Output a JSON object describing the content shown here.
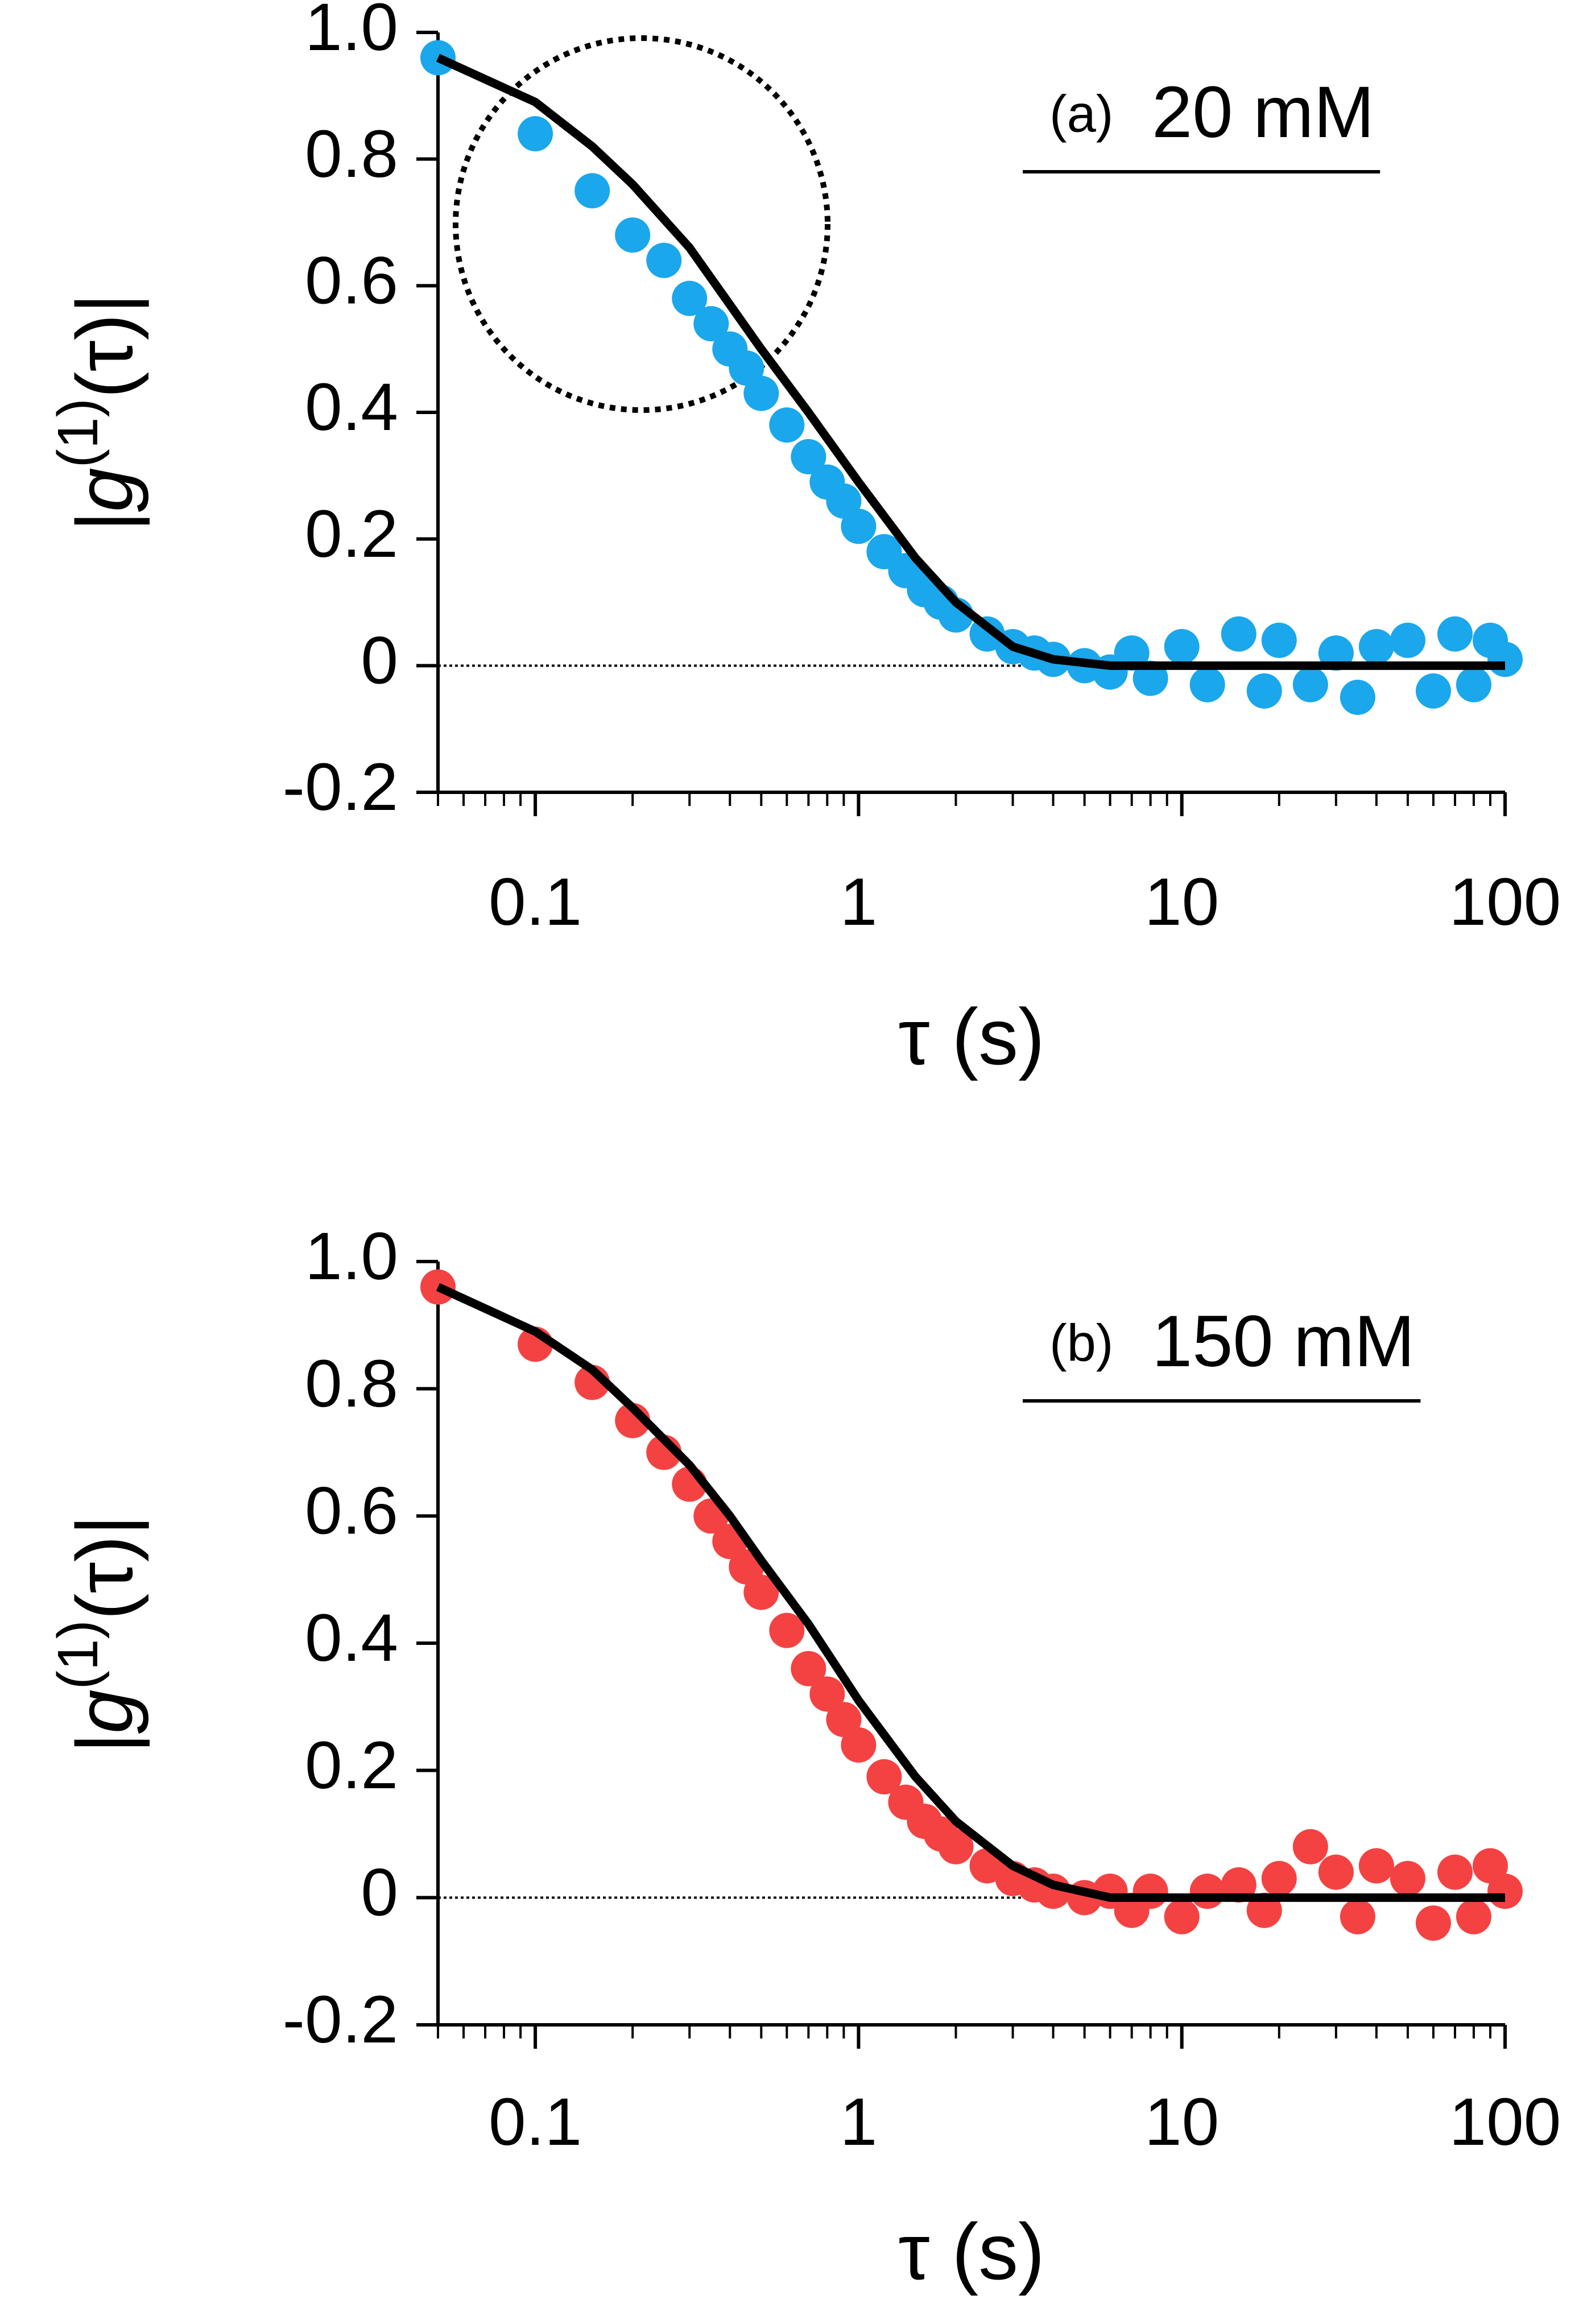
{
  "chart_data": [
    {
      "type": "scatter",
      "panel_label": "(a)",
      "annotation": "20 mM",
      "ylabel": {
        "prefix": "|g",
        "sup": "(1)",
        "suffix": "(τ)|"
      },
      "xlabel": "τ (s)",
      "xscale": "log",
      "xlim": [
        0.05,
        100
      ],
      "xticks": [
        0.1,
        1,
        10,
        100
      ],
      "xminorticks": [
        0.05,
        0.06,
        0.07,
        0.08,
        0.09,
        0.2,
        0.3,
        0.4,
        0.5,
        0.6,
        0.7,
        0.8,
        0.9,
        2,
        3,
        4,
        5,
        6,
        7,
        8,
        9,
        20,
        30,
        40,
        50,
        60,
        70,
        80,
        90
      ],
      "ylim": [
        -0.2,
        1.0
      ],
      "yticks": [
        -0.2,
        0,
        0.2,
        0.4,
        0.6,
        0.8,
        {
          "value": 1,
          "label": "1.0"
        }
      ],
      "zero_line": true,
      "series": [
        {
          "style": "markers",
          "color": "#1aa7ec",
          "x": [
            0.05,
            0.1,
            0.15,
            0.2,
            0.25,
            0.3,
            0.35,
            0.4,
            0.45,
            0.5,
            0.6,
            0.7,
            0.8,
            0.9,
            1,
            1.2,
            1.4,
            1.6,
            1.8,
            2,
            2.5,
            3,
            3.5,
            4,
            5,
            6,
            7,
            8,
            10,
            12,
            15,
            18,
            20,
            25,
            30,
            35,
            40,
            50,
            60,
            70,
            80,
            90,
            100
          ],
          "y": [
            0.96,
            0.84,
            0.75,
            0.68,
            0.64,
            0.58,
            0.54,
            0.5,
            0.47,
            0.43,
            0.38,
            0.33,
            0.29,
            0.26,
            0.22,
            0.18,
            0.15,
            0.12,
            0.1,
            0.08,
            0.05,
            0.03,
            0.02,
            0.01,
            0.0,
            -0.01,
            0.02,
            -0.02,
            0.03,
            -0.03,
            0.05,
            -0.04,
            0.04,
            -0.03,
            0.02,
            -0.05,
            0.03,
            0.04,
            -0.04,
            0.05,
            -0.03,
            0.04,
            0.01
          ]
        },
        {
          "style": "line",
          "color": "#000000",
          "x": [
            0.05,
            0.1,
            0.15,
            0.2,
            0.3,
            0.4,
            0.5,
            0.7,
            1,
            1.5,
            2,
            3,
            4,
            6,
            10,
            20,
            50,
            100
          ],
          "y": [
            0.96,
            0.89,
            0.82,
            0.76,
            0.66,
            0.57,
            0.5,
            0.4,
            0.29,
            0.17,
            0.1,
            0.03,
            0.01,
            0,
            0,
            0,
            0,
            0
          ]
        }
      ]
    },
    {
      "type": "scatter",
      "panel_label": "(b)",
      "annotation": "150 mM",
      "ylabel": {
        "prefix": "|g",
        "sup": "(1)",
        "suffix": "(τ)|"
      },
      "xlabel": "τ (s)",
      "xscale": "log",
      "xlim": [
        0.05,
        100
      ],
      "xticks": [
        0.1,
        1,
        10,
        100
      ],
      "xminorticks": [
        0.05,
        0.06,
        0.07,
        0.08,
        0.09,
        0.2,
        0.3,
        0.4,
        0.5,
        0.6,
        0.7,
        0.8,
        0.9,
        2,
        3,
        4,
        5,
        6,
        7,
        8,
        9,
        20,
        30,
        40,
        50,
        60,
        70,
        80,
        90
      ],
      "ylim": [
        -0.2,
        1.0
      ],
      "yticks": [
        -0.2,
        0,
        0.2,
        0.4,
        0.6,
        0.8,
        {
          "value": 1,
          "label": "1.0"
        }
      ],
      "zero_line": true,
      "series": [
        {
          "style": "markers",
          "color": "#f44242",
          "x": [
            0.05,
            0.1,
            0.15,
            0.2,
            0.25,
            0.3,
            0.35,
            0.4,
            0.45,
            0.5,
            0.6,
            0.7,
            0.8,
            0.9,
            1,
            1.2,
            1.4,
            1.6,
            1.8,
            2,
            2.5,
            3,
            3.5,
            4,
            5,
            6,
            7,
            8,
            10,
            12,
            15,
            18,
            20,
            25,
            30,
            35,
            40,
            50,
            60,
            70,
            80,
            90,
            100
          ],
          "y": [
            0.96,
            0.87,
            0.81,
            0.75,
            0.7,
            0.65,
            0.6,
            0.56,
            0.52,
            0.48,
            0.42,
            0.36,
            0.32,
            0.28,
            0.24,
            0.19,
            0.15,
            0.12,
            0.1,
            0.08,
            0.05,
            0.03,
            0.02,
            0.01,
            0.0,
            0.01,
            -0.02,
            0.01,
            -0.03,
            0.01,
            0.02,
            -0.02,
            0.03,
            0.08,
            0.04,
            -0.03,
            0.05,
            0.03,
            -0.04,
            0.04,
            -0.03,
            0.05,
            0.01
          ]
        },
        {
          "style": "line",
          "color": "#000000",
          "x": [
            0.05,
            0.1,
            0.15,
            0.2,
            0.3,
            0.4,
            0.5,
            0.7,
            1,
            1.5,
            2,
            3,
            4,
            6,
            10,
            20,
            50,
            100
          ],
          "y": [
            0.96,
            0.89,
            0.83,
            0.77,
            0.68,
            0.6,
            0.53,
            0.43,
            0.31,
            0.19,
            0.12,
            0.05,
            0.02,
            0,
            0,
            0,
            0,
            0
          ]
        }
      ]
    }
  ]
}
